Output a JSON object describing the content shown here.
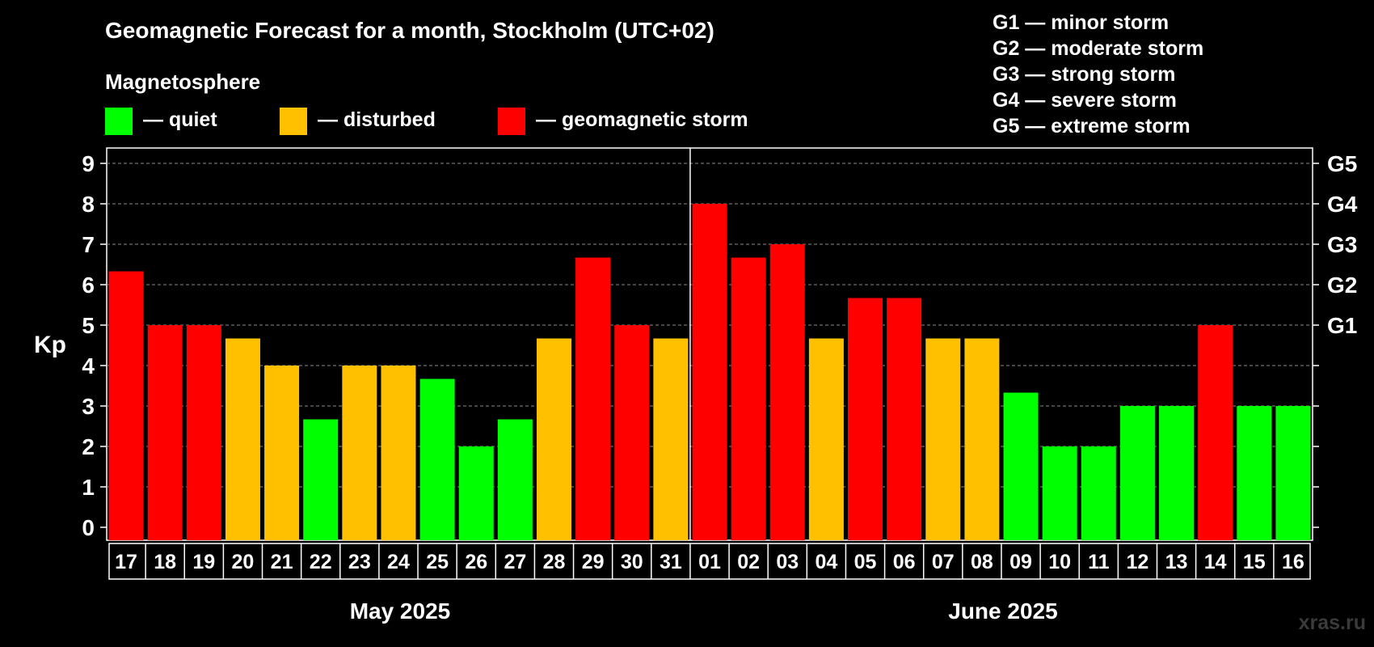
{
  "title": "Geomagnetic Forecast for a month, Stockholm (UTC+02)",
  "legend": {
    "heading": "Magnetosphere",
    "items": [
      {
        "label": "— quiet",
        "color": "#00ff00"
      },
      {
        "label": "— disturbed",
        "color": "#ffc000"
      },
      {
        "label": "— geomagnetic storm",
        "color": "#ff0000"
      }
    ]
  },
  "storm_levels": [
    "G1 — minor storm",
    "G2 — moderate storm",
    "G3 — strong storm",
    "G4 — severe storm",
    "G5 — extreme storm"
  ],
  "watermark": "xras.ru",
  "chart_data": {
    "type": "bar",
    "ylabel": "Kp",
    "ylim": [
      0,
      9
    ],
    "y_ticks": [
      0,
      1,
      2,
      3,
      4,
      5,
      6,
      7,
      8,
      9
    ],
    "right_axis_labels": [
      {
        "kp": 5,
        "label": "G1"
      },
      {
        "kp": 6,
        "label": "G2"
      },
      {
        "kp": 7,
        "label": "G3"
      },
      {
        "kp": 8,
        "label": "G4"
      },
      {
        "kp": 9,
        "label": "G5"
      }
    ],
    "grid": true,
    "categories": [
      "17",
      "18",
      "19",
      "20",
      "21",
      "22",
      "23",
      "24",
      "25",
      "26",
      "27",
      "28",
      "29",
      "30",
      "31",
      "01",
      "02",
      "03",
      "04",
      "05",
      "06",
      "07",
      "08",
      "09",
      "10",
      "11",
      "12",
      "13",
      "14",
      "15",
      "16"
    ],
    "values": [
      6.33,
      5,
      5,
      4.67,
      4,
      2.67,
      4,
      4,
      3.67,
      2,
      2.67,
      4.67,
      6.67,
      5,
      4.67,
      8,
      6.67,
      7,
      4.67,
      5.67,
      5.67,
      4.67,
      4.67,
      3.33,
      2,
      2,
      3,
      3,
      5,
      3,
      3
    ],
    "activity": [
      "storm",
      "storm",
      "storm",
      "disturbed",
      "disturbed",
      "quiet",
      "disturbed",
      "disturbed",
      "quiet",
      "quiet",
      "quiet",
      "disturbed",
      "storm",
      "storm",
      "disturbed",
      "storm",
      "storm",
      "storm",
      "disturbed",
      "storm",
      "storm",
      "disturbed",
      "disturbed",
      "quiet",
      "quiet",
      "quiet",
      "quiet",
      "quiet",
      "storm",
      "quiet",
      "quiet"
    ],
    "months": [
      {
        "label": "May 2025",
        "count": 15
      },
      {
        "label": "June 2025",
        "count": 16
      }
    ]
  }
}
